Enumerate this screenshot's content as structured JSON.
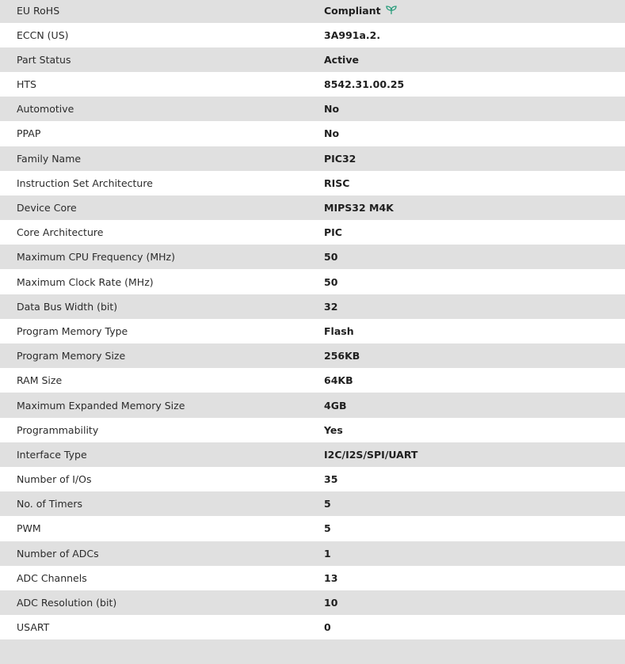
{
  "rows": [
    {
      "label": "EU RoHS",
      "value": "Compliant",
      "icon": "leaf-icon"
    },
    {
      "label": "ECCN (US)",
      "value": "3A991a.2."
    },
    {
      "label": "Part Status",
      "value": "Active"
    },
    {
      "label": "HTS",
      "value": "8542.31.00.25"
    },
    {
      "label": "Automotive",
      "value": "No"
    },
    {
      "label": "PPAP",
      "value": "No"
    },
    {
      "label": "Family Name",
      "value": "PIC32"
    },
    {
      "label": "Instruction Set Architecture",
      "value": "RISC"
    },
    {
      "label": "Device Core",
      "value": "MIPS32 M4K"
    },
    {
      "label": "Core Architecture",
      "value": "PIC"
    },
    {
      "label": "Maximum CPU Frequency (MHz)",
      "value": "50"
    },
    {
      "label": "Maximum Clock Rate (MHz)",
      "value": "50"
    },
    {
      "label": "Data Bus Width (bit)",
      "value": "32"
    },
    {
      "label": "Program Memory Type",
      "value": "Flash"
    },
    {
      "label": "Program Memory Size",
      "value": "256KB"
    },
    {
      "label": "RAM Size",
      "value": "64KB"
    },
    {
      "label": "Maximum Expanded Memory Size",
      "value": "4GB"
    },
    {
      "label": "Programmability",
      "value": "Yes"
    },
    {
      "label": "Interface Type",
      "value": "I2C/I2S/SPI/UART"
    },
    {
      "label": "Number of I/Os",
      "value": "35"
    },
    {
      "label": "No. of Timers",
      "value": "5"
    },
    {
      "label": "PWM",
      "value": "5"
    },
    {
      "label": "Number of ADCs",
      "value": "1"
    },
    {
      "label": "ADC Channels",
      "value": "13"
    },
    {
      "label": "ADC Resolution (bit)",
      "value": "10"
    },
    {
      "label": "USART",
      "value": "0"
    },
    {
      "label": "",
      "value": ""
    }
  ],
  "colors": {
    "row_alt": "#e0e0e0",
    "leaf": "#2a9d7c"
  }
}
